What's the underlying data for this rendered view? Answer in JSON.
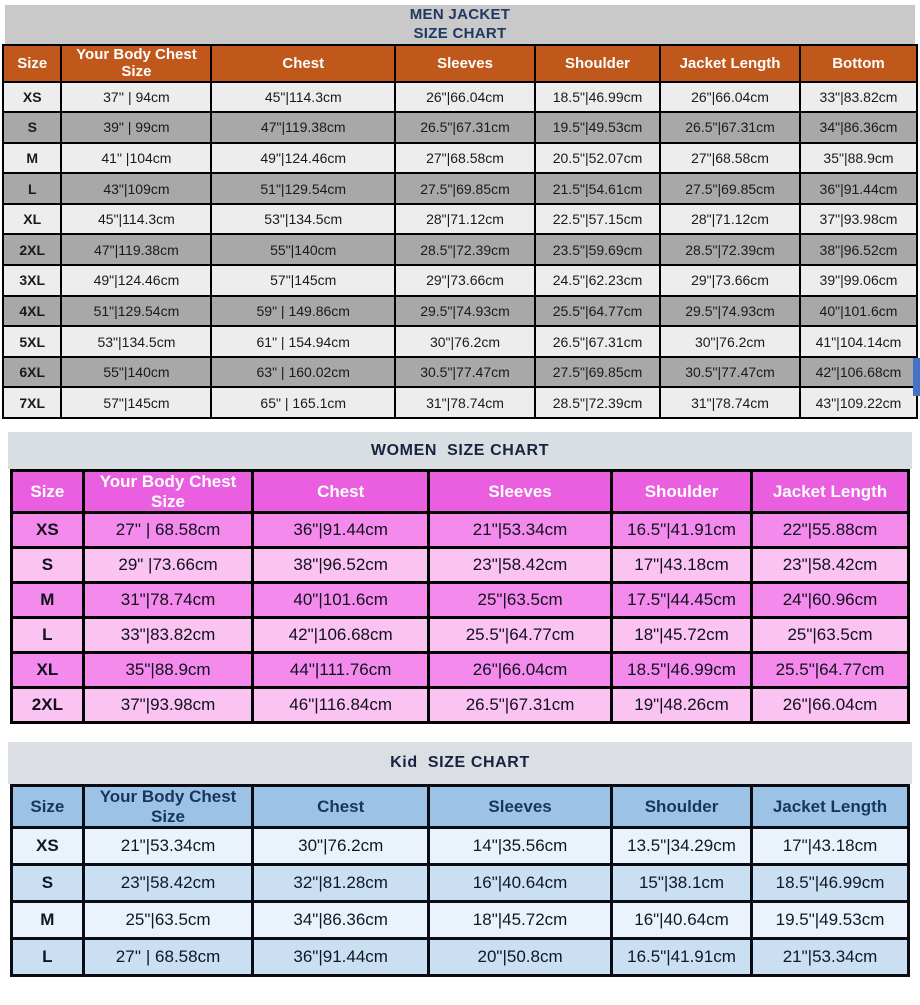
{
  "page": {
    "background": "#FFFFFF"
  },
  "artifact": {
    "name": "blue-edge-mark",
    "color": "#4472C4"
  },
  "tables": [
    {
      "id": "men",
      "title": "MEN JACKET\nSIZE CHART",
      "columns": [
        "Size",
        "Your Body Chest Size",
        "Chest",
        "Sleeves",
        "Shoulder",
        "Jacket Length",
        "Bottom"
      ],
      "rows": [
        [
          "XS",
          "37'' | 94cm",
          "45\"|114.3cm",
          "26\"|66.04cm",
          "18.5\"|46.99cm",
          "26\"|66.04cm",
          "33\"|83.82cm"
        ],
        [
          "S",
          "39\" | 99cm",
          "47\"|119.38cm",
          "26.5\"|67.31cm",
          "19.5\"|49.53cm",
          "26.5\"|67.31cm",
          "34\"|86.36cm"
        ],
        [
          "M",
          "41\" |104cm",
          "49\"|124.46cm",
          "27\"|68.58cm",
          "20.5\"|52.07cm",
          "27\"|68.58cm",
          "35\"|88.9cm"
        ],
        [
          "L",
          "43\"|109cm",
          "51\"|129.54cm",
          "27.5\"|69.85cm",
          "21.5\"|54.61cm",
          "27.5\"|69.85cm",
          "36\"|91.44cm"
        ],
        [
          "XL",
          "45\"|114.3cm",
          "53\"|134.5cm",
          "28\"|71.12cm",
          "22.5\"|57.15cm",
          "28\"|71.12cm",
          "37\"|93.98cm"
        ],
        [
          "2XL",
          "47\"|119.38cm",
          "55\"|140cm",
          "28.5\"|72.39cm",
          "23.5\"|59.69cm",
          "28.5\"|72.39cm",
          "38\"|96.52cm"
        ],
        [
          "3XL",
          "49\"|124.46cm",
          "57\"|145cm",
          "29\"|73.66cm",
          "24.5\"|62.23cm",
          "29\"|73.66cm",
          "39\"|99.06cm"
        ],
        [
          "4XL",
          "51\"|129.54cm",
          "59\" | 149.86cm",
          "29.5\"|74.93cm",
          "25.5\"|64.77cm",
          "29.5\"|74.93cm",
          "40\"|101.6cm"
        ],
        [
          "5XL",
          "53\"|134.5cm",
          "61\" | 154.94cm",
          "30\"|76.2cm",
          "26.5\"|67.31cm",
          "30\"|76.2cm",
          "41\"|104.14cm"
        ],
        [
          "6XL",
          "55\"|140cm",
          "63\" | 160.02cm",
          "30.5\"|77.47cm",
          "27.5\"|69.85cm",
          "30.5\"|77.47cm",
          "42\"|106.68cm"
        ],
        [
          "7XL",
          "57\"|145cm",
          "65\" | 165.1cm",
          "31\"|78.74cm",
          "28.5\"|72.39cm",
          "31\"|78.74cm",
          "43\"|109.22cm"
        ]
      ],
      "alt_start_dark": false,
      "colors": {
        "title_bg": "#C9C9C9",
        "title_text": "#1F3864",
        "header_bg": "#C0571B",
        "header_text": "#FFFFFF",
        "row_light": "#EDEDED",
        "row_dark": "#A8A8A8",
        "cell_text": "#1A1A1A",
        "border": "#000000"
      }
    },
    {
      "id": "women",
      "title": "WOMEN  SIZE CHART",
      "columns": [
        "Size",
        "Your Body Chest Size",
        "Chest",
        "Sleeves",
        "Shoulder",
        "Jacket Length"
      ],
      "rows": [
        [
          "XS",
          "27'' | 68.58cm",
          "36\"|91.44cm",
          "21\"|53.34cm",
          "16.5\"|41.91cm",
          "22\"|55.88cm"
        ],
        [
          "S",
          "29\" |73.66cm",
          "38\"|96.52cm",
          "23\"|58.42cm",
          "17\"|43.18cm",
          "23\"|58.42cm"
        ],
        [
          "M",
          "31\"|78.74cm",
          "40\"|101.6cm",
          "25\"|63.5cm",
          "17.5\"|44.45cm",
          "24\"|60.96cm"
        ],
        [
          "L",
          "33\"|83.82cm",
          "42\"|106.68cm",
          "25.5\"|64.77cm",
          "18\"|45.72cm",
          "25\"|63.5cm"
        ],
        [
          "XL",
          "35\"|88.9cm",
          "44\"|111.76cm",
          "26\"|66.04cm",
          "18.5\"|46.99cm",
          "25.5\"|64.77cm"
        ],
        [
          "2XL",
          "37\"|93.98cm",
          "46\"|116.84cm",
          "26.5\"|67.31cm",
          "19\"|48.26cm",
          "26\"|66.04cm"
        ]
      ],
      "alt_start_dark": true,
      "colors": {
        "title_bg": "#D9DEE3",
        "title_text": "#17233F",
        "header_bg": "#E95FE0",
        "header_text": "#FFFFFF",
        "row_light": "#FAC3F1",
        "row_dark": "#F48AEC",
        "cell_text": "#10101E",
        "border": "#000000"
      }
    },
    {
      "id": "kid",
      "title": "Kid  SIZE CHART",
      "columns": [
        "Size",
        "Your Body Chest Size",
        "Chest",
        "Sleeves",
        "Shoulder",
        "Jacket Length"
      ],
      "rows": [
        [
          "XS",
          "21\"|53.34cm",
          "30\"|76.2cm",
          "14\"|35.56cm",
          "13.5\"|34.29cm",
          "17\"|43.18cm"
        ],
        [
          "S",
          "23\"|58.42cm",
          "32\"|81.28cm",
          "16\"|40.64cm",
          "15\"|38.1cm",
          "18.5\"|46.99cm"
        ],
        [
          "M",
          "25\"|63.5cm",
          "34\"|86.36cm",
          "18\"|45.72cm",
          "16\"|40.64cm",
          "19.5\"|49.53cm"
        ],
        [
          "L",
          "27'' | 68.58cm",
          "36\"|91.44cm",
          "20\"|50.8cm",
          "16.5\"|41.91cm",
          "21\"|53.34cm"
        ]
      ],
      "alt_start_dark": false,
      "colors": {
        "title_bg": "#DBDFE4",
        "title_text": "#17233F",
        "header_bg": "#9CC3E5",
        "header_text": "#17365D",
        "row_light": "#EAF3FB",
        "row_dark": "#CADFF2",
        "cell_text": "#0F1726",
        "border": "#0B0B14"
      }
    }
  ]
}
